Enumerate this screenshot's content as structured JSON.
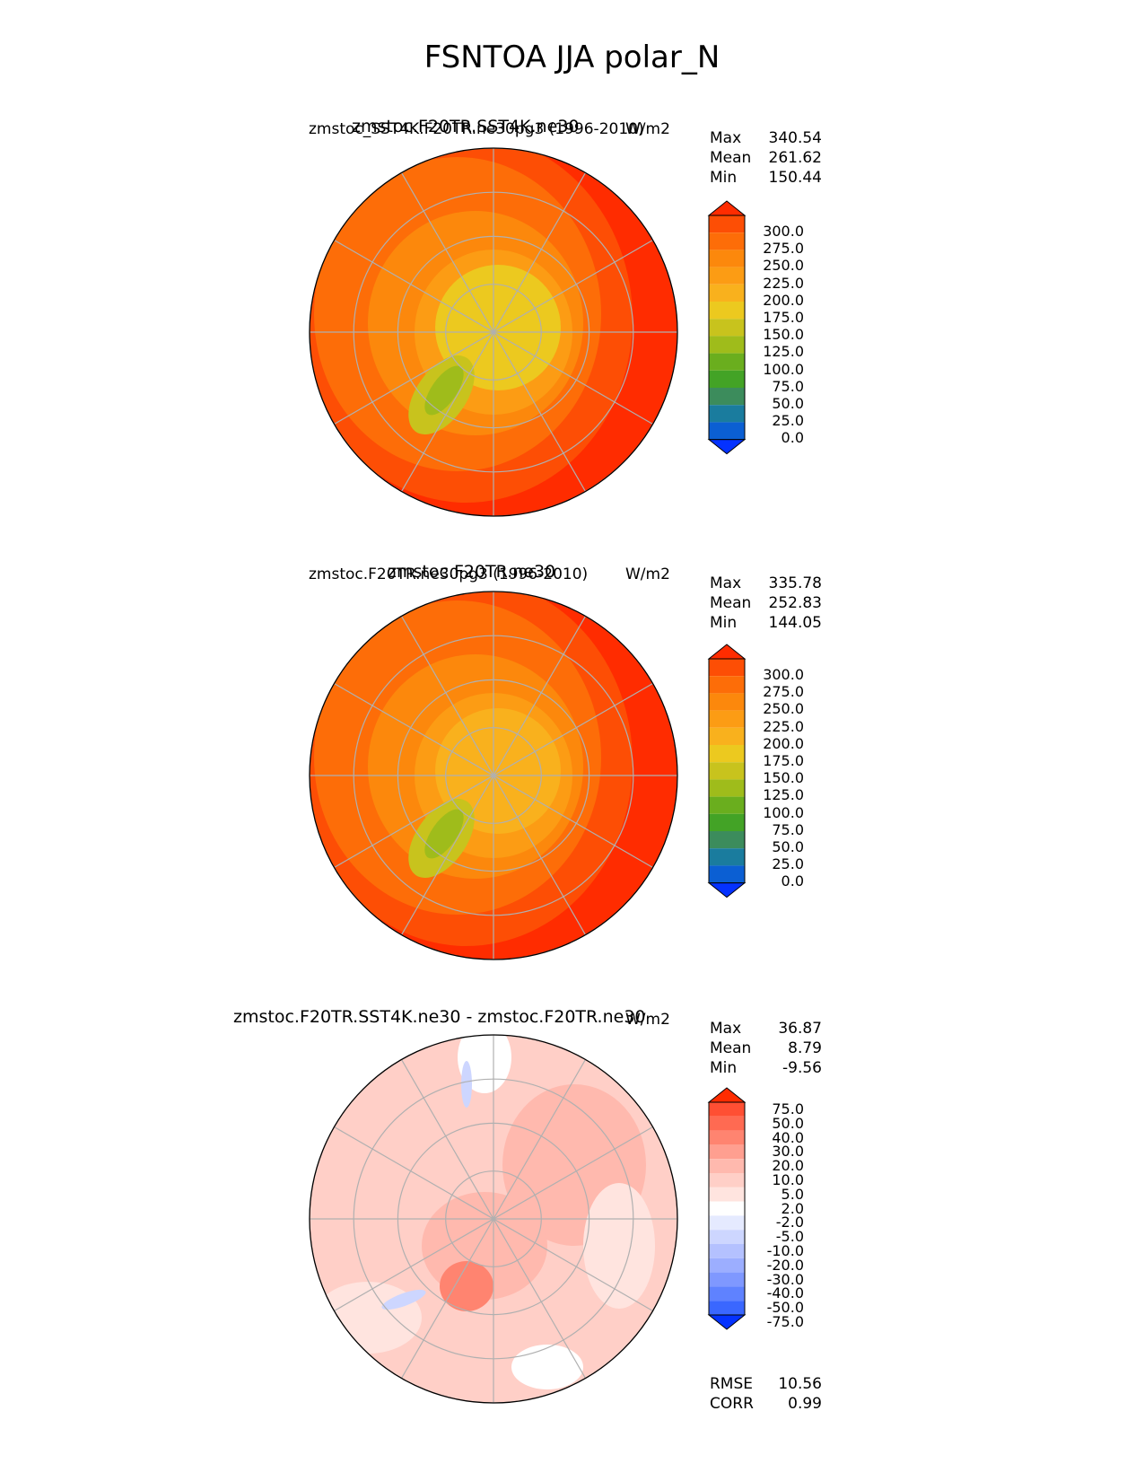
{
  "title": "FSNTOA JJA polar_N",
  "colors": {
    "ref_ramp": [
      "#0432ff",
      "#0b5fd3",
      "#1a7c9e",
      "#3c8c5c",
      "#43a326",
      "#6aae1e",
      "#9fbc1b",
      "#c8c31d",
      "#ecc91f",
      "#f9b11d",
      "#fc9c14",
      "#fc880c",
      "#fd6d08",
      "#fd4e05",
      "#ff2c00"
    ],
    "diff_ramp": [
      "#0432ff",
      "#3a67ff",
      "#5f82ff",
      "#7f98ff",
      "#9caeff",
      "#b4c1ff",
      "#cdd6ff",
      "#e5eaff",
      "#ffffff",
      "#ffe4df",
      "#ffcfc7",
      "#ffb9ae",
      "#ff9f90",
      "#ff8470",
      "#ff6a52",
      "#ff4f33",
      "#ff2c00"
    ]
  },
  "panels": [
    {
      "title_left": "zmstoc.F20TR.SST4K.ne30",
      "overlap_text": "zmstoc_SST4K.F20TR.ne30pg3 (1996-2010)",
      "units": "W/m2",
      "stats": {
        "max_label": "Max",
        "max": "340.54",
        "mean_label": "Mean",
        "mean": "261.62",
        "min_label": "Min",
        "min": "150.44"
      },
      "colorbar": {
        "ticks": [
          "300.0",
          "275.0",
          "250.0",
          "225.0",
          "200.0",
          "175.0",
          "150.0",
          "125.0",
          "100.0",
          "75.0",
          "50.0",
          "25.0",
          "0.0"
        ]
      }
    },
    {
      "title_left": "zmstoc.F20TR.ne30",
      "overlap_text": "zmstoc.F20TR.ne30pg3 (1996-2010)",
      "units": "W/m2",
      "stats": {
        "max_label": "Max",
        "max": "335.78",
        "mean_label": "Mean",
        "mean": "252.83",
        "min_label": "Min",
        "min": "144.05"
      },
      "colorbar": {
        "ticks": [
          "300.0",
          "275.0",
          "250.0",
          "225.0",
          "200.0",
          "175.0",
          "150.0",
          "125.0",
          "100.0",
          "75.0",
          "50.0",
          "25.0",
          "0.0"
        ]
      }
    },
    {
      "title_left": "zmstoc.F20TR.SST4K.ne30 - zmstoc.F20TR.ne30",
      "units": "W/m2",
      "stats": {
        "max_label": "Max",
        "max": "36.87",
        "mean_label": "Mean",
        "mean": "8.79",
        "min_label": "Min",
        "min": "-9.56"
      },
      "colorbar": {
        "ticks": [
          "75.0",
          "50.0",
          "40.0",
          "30.0",
          "20.0",
          "10.0",
          "5.0",
          "2.0",
          "-2.0",
          "-5.0",
          "-10.0",
          "-20.0",
          "-30.0",
          "-40.0",
          "-50.0",
          "-75.0"
        ]
      },
      "metrics": {
        "rmse_label": "RMSE",
        "rmse": "10.56",
        "corr_label": "CORR",
        "corr": "0.99"
      }
    }
  ],
  "chart_data": [
    {
      "type": "heatmap",
      "title": "zmstoc.F20TR.SST4K.ne30",
      "projection": "north polar stereographic",
      "variable": "FSNTOA",
      "season": "JJA",
      "units": "W/m2",
      "levels": [
        0,
        25,
        50,
        75,
        100,
        125,
        150,
        175,
        200,
        225,
        250,
        275,
        300
      ],
      "max": 340.54,
      "mean": 261.62,
      "min": 150.44
    },
    {
      "type": "heatmap",
      "title": "zmstoc.F20TR.ne30",
      "projection": "north polar stereographic",
      "variable": "FSNTOA",
      "season": "JJA",
      "units": "W/m2",
      "levels": [
        0,
        25,
        50,
        75,
        100,
        125,
        150,
        175,
        200,
        225,
        250,
        275,
        300
      ],
      "max": 335.78,
      "mean": 252.83,
      "min": 144.05
    },
    {
      "type": "heatmap",
      "title": "zmstoc.F20TR.SST4K.ne30 - zmstoc.F20TR.ne30",
      "projection": "north polar stereographic",
      "variable": "FSNTOA",
      "season": "JJA",
      "units": "W/m2",
      "levels": [
        -75,
        -50,
        -40,
        -30,
        -20,
        -10,
        -5,
        -2,
        2,
        5,
        10,
        20,
        30,
        40,
        50,
        75
      ],
      "max": 36.87,
      "mean": 8.79,
      "min": -9.56,
      "rmse": 10.56,
      "corr": 0.99
    }
  ]
}
